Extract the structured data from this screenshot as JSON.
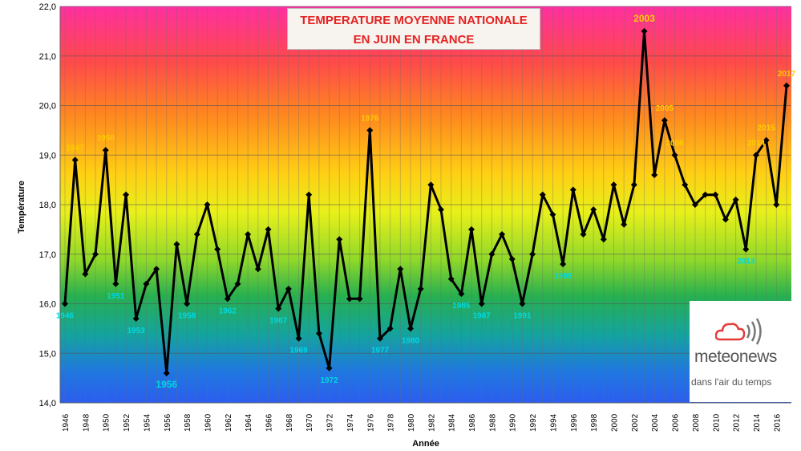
{
  "chart_data": {
    "type": "line",
    "title_lines": [
      "TEMPERATURE MOYENNE NATIONALE",
      "EN JUIN EN FRANCE"
    ],
    "xlabel": "Année",
    "ylabel": "Température",
    "ylim": [
      14.0,
      22.0
    ],
    "yticks": [
      "14,0",
      "15,0",
      "16,0",
      "17,0",
      "18,0",
      "19,0",
      "20,0",
      "21,0",
      "22,0"
    ],
    "xtick_labels": [
      "1946",
      "1948",
      "1950",
      "1952",
      "1954",
      "1956",
      "1958",
      "1960",
      "1962",
      "1964",
      "1966",
      "1968",
      "1970",
      "1972",
      "1974",
      "1976",
      "1978",
      "1980",
      "1982",
      "1984",
      "1986",
      "1988",
      "1990",
      "1992",
      "1994",
      "1996",
      "1998",
      "2000",
      "2002",
      "2004",
      "2006",
      "2008",
      "2010",
      "2012",
      "2014",
      "2016"
    ],
    "x": [
      1946,
      1947,
      1948,
      1949,
      1950,
      1951,
      1952,
      1953,
      1954,
      1955,
      1956,
      1957,
      1958,
      1959,
      1960,
      1961,
      1962,
      1963,
      1964,
      1965,
      1966,
      1967,
      1968,
      1969,
      1970,
      1971,
      1972,
      1973,
      1974,
      1975,
      1976,
      1977,
      1978,
      1979,
      1980,
      1981,
      1982,
      1983,
      1984,
      1985,
      1986,
      1987,
      1988,
      1989,
      1990,
      1991,
      1992,
      1993,
      1994,
      1995,
      1996,
      1997,
      1998,
      1999,
      2000,
      2001,
      2002,
      2003,
      2004,
      2005,
      2006,
      2007,
      2008,
      2009,
      2010,
      2011,
      2012,
      2013,
      2014,
      2015,
      2016,
      2017
    ],
    "values": [
      16.0,
      18.9,
      16.6,
      17.0,
      19.1,
      16.4,
      18.2,
      15.7,
      16.4,
      16.7,
      14.6,
      17.2,
      16.0,
      17.4,
      18.0,
      17.1,
      16.1,
      16.4,
      17.4,
      16.7,
      17.5,
      15.9,
      16.3,
      15.3,
      18.2,
      15.4,
      14.7,
      17.3,
      16.1,
      16.1,
      19.5,
      15.3,
      15.5,
      16.7,
      15.5,
      16.3,
      18.4,
      17.9,
      16.5,
      16.2,
      17.5,
      16.0,
      17.0,
      17.4,
      16.9,
      16.0,
      17.0,
      18.2,
      17.8,
      16.8,
      18.3,
      17.4,
      17.9,
      17.3,
      18.4,
      17.6,
      18.4,
      21.5,
      18.6,
      19.7,
      19.0,
      18.4,
      18.0,
      18.2,
      18.2,
      17.7,
      18.1,
      17.1,
      19.0,
      19.3,
      18.0,
      20.4
    ],
    "high_labels": [
      {
        "year": 1947,
        "text": "1947"
      },
      {
        "year": 1950,
        "text": "1950"
      },
      {
        "year": 1976,
        "text": "1976"
      },
      {
        "year": 2003,
        "text": "2003"
      },
      {
        "year": 2005,
        "text": "2005"
      },
      {
        "year": 2006,
        "text": "2006"
      },
      {
        "year": 2014,
        "text": "2014"
      },
      {
        "year": 2015,
        "text": "2015"
      },
      {
        "year": 2017,
        "text": "2017"
      }
    ],
    "low_labels": [
      {
        "year": 1946,
        "text": "1946"
      },
      {
        "year": 1951,
        "text": "1951"
      },
      {
        "year": 1953,
        "text": "1953"
      },
      {
        "year": 1956,
        "text": "1956"
      },
      {
        "year": 1958,
        "text": "1958"
      },
      {
        "year": 1962,
        "text": "1962"
      },
      {
        "year": 1967,
        "text": "1967"
      },
      {
        "year": 1969,
        "text": "1969"
      },
      {
        "year": 1972,
        "text": "1972"
      },
      {
        "year": 1977,
        "text": "1977"
      },
      {
        "year": 1980,
        "text": "1980"
      },
      {
        "year": 1985,
        "text": "1985"
      },
      {
        "year": 1987,
        "text": "1987"
      },
      {
        "year": 1991,
        "text": "1991"
      },
      {
        "year": 1995,
        "text": "1995"
      },
      {
        "year": 2013,
        "text": "2013"
      }
    ],
    "colors": {
      "line": "#000000",
      "high_label": "#ffcc00",
      "low_label": "#00d8e0",
      "title": "#e52222"
    }
  },
  "logo": {
    "name": "meteonews",
    "tagline": "dans l'air du temps"
  }
}
